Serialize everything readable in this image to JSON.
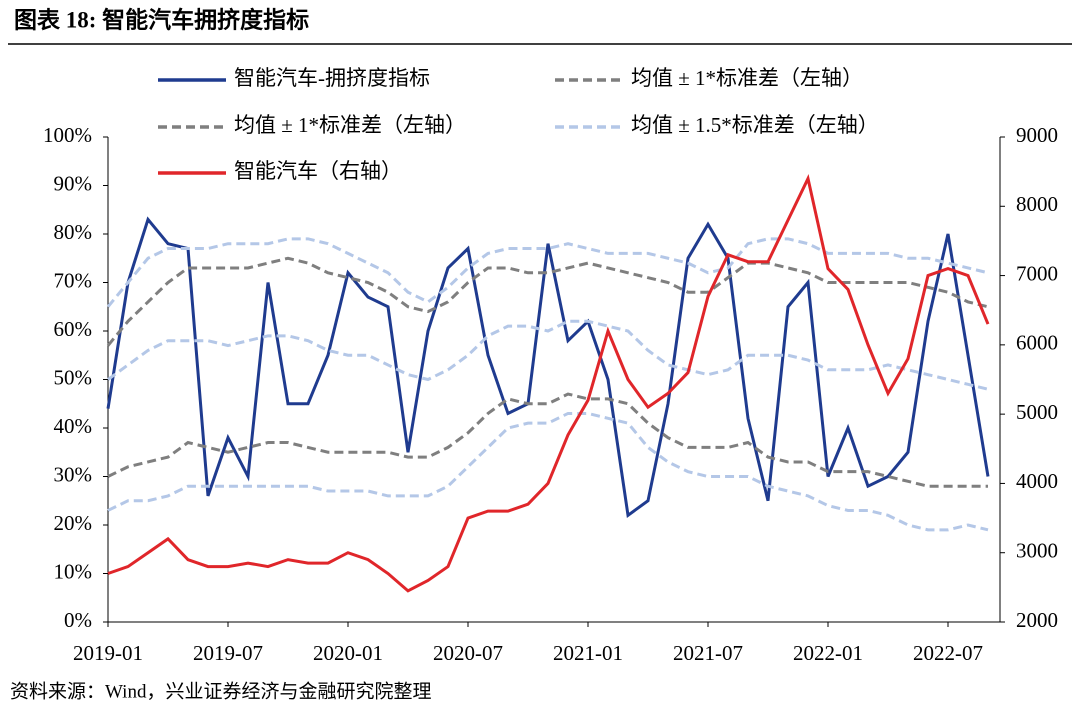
{
  "title": "图表 18:  智能汽车拥挤度指标",
  "source": "资料来源：Wind，兴业证券经济与金融研究院整理",
  "chart_data": {
    "type": "line",
    "x": [
      "2019-01",
      "2019-02",
      "2019-03",
      "2019-04",
      "2019-05",
      "2019-06",
      "2019-07",
      "2019-08",
      "2019-09",
      "2019-10",
      "2019-11",
      "2019-12",
      "2020-01",
      "2020-02",
      "2020-03",
      "2020-04",
      "2020-05",
      "2020-06",
      "2020-07",
      "2020-08",
      "2020-09",
      "2020-10",
      "2020-11",
      "2020-12",
      "2021-01",
      "2021-02",
      "2021-03",
      "2021-04",
      "2021-05",
      "2021-06",
      "2021-07",
      "2021-08",
      "2021-09",
      "2021-10",
      "2021-11",
      "2021-12",
      "2022-01",
      "2022-02",
      "2022-03",
      "2022-04",
      "2022-05",
      "2022-06",
      "2022-07",
      "2022-08",
      "2022-09"
    ],
    "xticks": [
      "2019-01",
      "2019-07",
      "2020-01",
      "2020-07",
      "2021-01",
      "2021-07",
      "2022-01",
      "2022-07"
    ],
    "ylim": [
      0,
      100
    ],
    "yticks": [
      {
        "value": 0,
        "label": "0%"
      },
      {
        "value": 10,
        "label": "10%"
      },
      {
        "value": 20,
        "label": "20%"
      },
      {
        "value": 30,
        "label": "30%"
      },
      {
        "value": 40,
        "label": "40%"
      },
      {
        "value": 50,
        "label": "50%"
      },
      {
        "value": 60,
        "label": "60%"
      },
      {
        "value": 70,
        "label": "70%"
      },
      {
        "value": 80,
        "label": "80%"
      },
      {
        "value": 90,
        "label": "90%"
      },
      {
        "value": 100,
        "label": "100%"
      }
    ],
    "y2lim": [
      2000,
      9000
    ],
    "y2ticks": [
      2000,
      3000,
      4000,
      5000,
      6000,
      7000,
      8000,
      9000
    ],
    "series": [
      {
        "name": "智能汽车-拥挤度指标",
        "color": "#1f3b8f",
        "dash": false,
        "values": [
          44,
          70,
          83,
          78,
          77,
          26,
          38,
          30,
          70,
          45,
          45,
          55,
          72,
          67,
          65,
          35,
          60,
          73,
          77,
          55,
          43,
          45,
          78,
          58,
          62,
          50,
          22,
          25,
          45,
          75,
          82,
          75,
          42,
          25,
          65,
          70,
          30,
          40,
          28,
          30,
          35,
          62,
          80,
          55,
          30
        ]
      },
      {
        "name": "均值 ± 1*标准差（左轴）",
        "color": "#7f7f7f",
        "dash": true,
        "values": [
          57,
          62,
          66,
          70,
          73,
          73,
          73,
          73,
          74,
          75,
          74,
          72,
          71,
          70,
          68,
          65,
          64,
          66,
          70,
          73,
          73,
          72,
          72,
          73,
          74,
          73,
          72,
          71,
          70,
          68,
          68,
          71,
          74,
          74,
          73,
          72,
          70,
          70,
          70,
          70,
          70,
          69,
          68,
          66,
          65
        ]
      },
      {
        "name": "均值 ± 1*标准差（左轴）",
        "color": "#7f7f7f",
        "dash": true,
        "values": [
          30,
          32,
          33,
          34,
          37,
          36,
          35,
          36,
          37,
          37,
          36,
          35,
          35,
          35,
          35,
          34,
          34,
          36,
          39,
          43,
          46,
          45,
          45,
          47,
          46,
          46,
          45,
          41,
          38,
          36,
          36,
          36,
          37,
          34,
          33,
          33,
          31,
          31,
          31,
          30,
          29,
          28,
          28,
          28,
          28
        ]
      },
      {
        "name": "均值 ± 1.5*标准差（左轴）",
        "color": "#b4c7e7",
        "dash": true,
        "values": [
          65,
          70,
          75,
          77,
          77,
          77,
          78,
          78,
          78,
          79,
          79,
          78,
          76,
          74,
          72,
          68,
          66,
          69,
          73,
          76,
          77,
          77,
          77,
          78,
          77,
          76,
          76,
          76,
          75,
          74,
          72,
          73,
          78,
          79,
          79,
          78,
          76,
          76,
          76,
          76,
          75,
          75,
          74,
          73,
          72
        ]
      },
      {
        "color": "#b4c7e7",
        "dash": true,
        "values": [
          50,
          53,
          56,
          58,
          58,
          58,
          57,
          58,
          59,
          59,
          58,
          56,
          55,
          55,
          53,
          51,
          50,
          52,
          55,
          59,
          61,
          61,
          60,
          62,
          62,
          61,
          60,
          56,
          53,
          52,
          51,
          52,
          55,
          55,
          55,
          54,
          52,
          52,
          52,
          53,
          52,
          51,
          50,
          49,
          48
        ]
      },
      {
        "color": "#b4c7e7",
        "dash": true,
        "values": [
          23,
          25,
          25,
          26,
          28,
          28,
          28,
          28,
          28,
          28,
          28,
          27,
          27,
          27,
          26,
          26,
          26,
          28,
          32,
          36,
          40,
          41,
          41,
          43,
          43,
          42,
          41,
          36,
          33,
          31,
          30,
          30,
          30,
          28,
          27,
          26,
          24,
          23,
          23,
          22,
          20,
          19,
          19,
          20,
          19
        ]
      },
      {
        "name": "智能汽车（右轴）",
        "color": "#e0262a",
        "dash": false,
        "axis": "y2",
        "values": [
          2700,
          2800,
          3000,
          3200,
          2900,
          2800,
          2800,
          2850,
          2800,
          2900,
          2850,
          2850,
          3000,
          2900,
          2700,
          2450,
          2600,
          2800,
          3500,
          3600,
          3600,
          3700,
          4000,
          4700,
          5200,
          6200,
          5500,
          5100,
          5300,
          5600,
          6700,
          7300,
          7200,
          7200,
          7800,
          8400,
          7100,
          6800,
          6000,
          5300,
          5800,
          7000,
          7100,
          7000,
          6300
        ]
      }
    ]
  }
}
